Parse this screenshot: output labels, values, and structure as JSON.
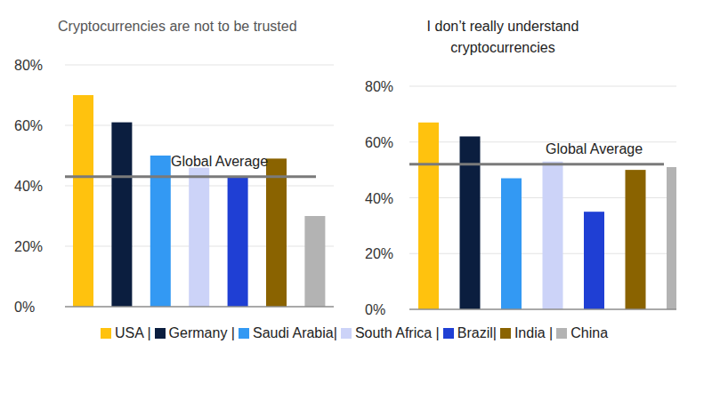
{
  "chart_data": [
    {
      "type": "bar",
      "title": "Cryptocurrencies are not to be trusted",
      "categories": [
        "USA |",
        "Germany |",
        "Saudi Arabia|",
        "South Africa |",
        "Brazil|",
        "India |",
        "China"
      ],
      "values": [
        70,
        61,
        50,
        46,
        43,
        49,
        30
      ],
      "colors": [
        "#ffc20e",
        "#0b1e3f",
        "#3399f3",
        "#ccd3f8",
        "#1f3fd4",
        "#8a6300",
        "#b3b3b3"
      ],
      "ylim": [
        0,
        80
      ],
      "yticks": [
        {
          "value": 0,
          "label": "0%"
        },
        {
          "value": 20,
          "label": "20%"
        },
        {
          "value": 40,
          "label": "40%"
        },
        {
          "value": 60,
          "label": "60%"
        },
        {
          "value": 80,
          "label": "80%"
        }
      ],
      "reference_line": {
        "value": 43,
        "label": "Global Average"
      },
      "grid": true,
      "tick_labels": "y",
      "legend": "bottom"
    },
    {
      "type": "bar",
      "title": "I don’t really understand cryptocurrencies",
      "categories": [
        "USA |",
        "Germany |",
        "Saudi Arabia|",
        "South Africa |",
        "Brazil|",
        "India |",
        "China"
      ],
      "values": [
        67,
        62,
        47,
        53,
        35,
        50,
        51
      ],
      "colors": [
        "#ffc20e",
        "#0b1e3f",
        "#3399f3",
        "#ccd3f8",
        "#1f3fd4",
        "#8a6300",
        "#b3b3b3"
      ],
      "ylim": [
        0,
        80
      ],
      "yticks": [
        {
          "value": 0,
          "label": "0%"
        },
        {
          "value": 20,
          "label": "20%"
        },
        {
          "value": 40,
          "label": "40%"
        },
        {
          "value": 60,
          "label": "60%"
        },
        {
          "value": 80,
          "label": "80%"
        }
      ],
      "reference_line": {
        "value": 52,
        "label": "Global Average"
      },
      "grid": true,
      "tick_labels": "y"
    }
  ]
}
